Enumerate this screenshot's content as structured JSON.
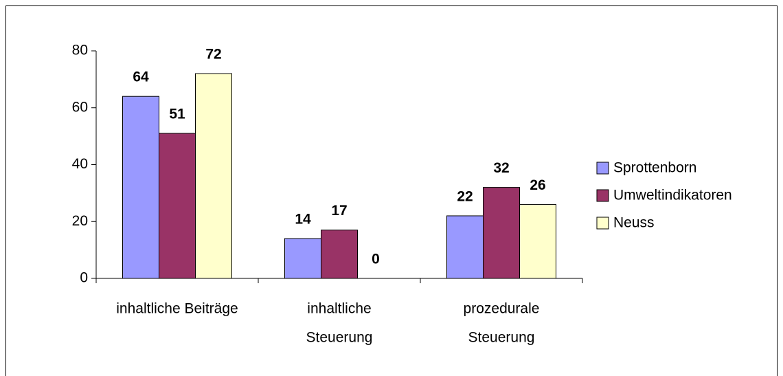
{
  "chart_data": {
    "type": "bar",
    "categories": [
      "inhaltliche Beiträge",
      [
        "inhaltliche",
        "Steuerung"
      ],
      [
        "prozedurale",
        "Steuerung"
      ]
    ],
    "series": [
      {
        "name": "Sprottenborn",
        "color": "#9999ff",
        "values": [
          64,
          14,
          22
        ]
      },
      {
        "name": "Umweltindikatoren",
        "color": "#993366",
        "values": [
          51,
          17,
          32
        ]
      },
      {
        "name": "Neuss",
        "color": "#ffffcc",
        "values": [
          72,
          0,
          26
        ]
      }
    ],
    "ylim": [
      0,
      80
    ],
    "yticks": [
      0,
      20,
      40,
      60,
      80
    ],
    "grid": false,
    "legend": "right"
  }
}
